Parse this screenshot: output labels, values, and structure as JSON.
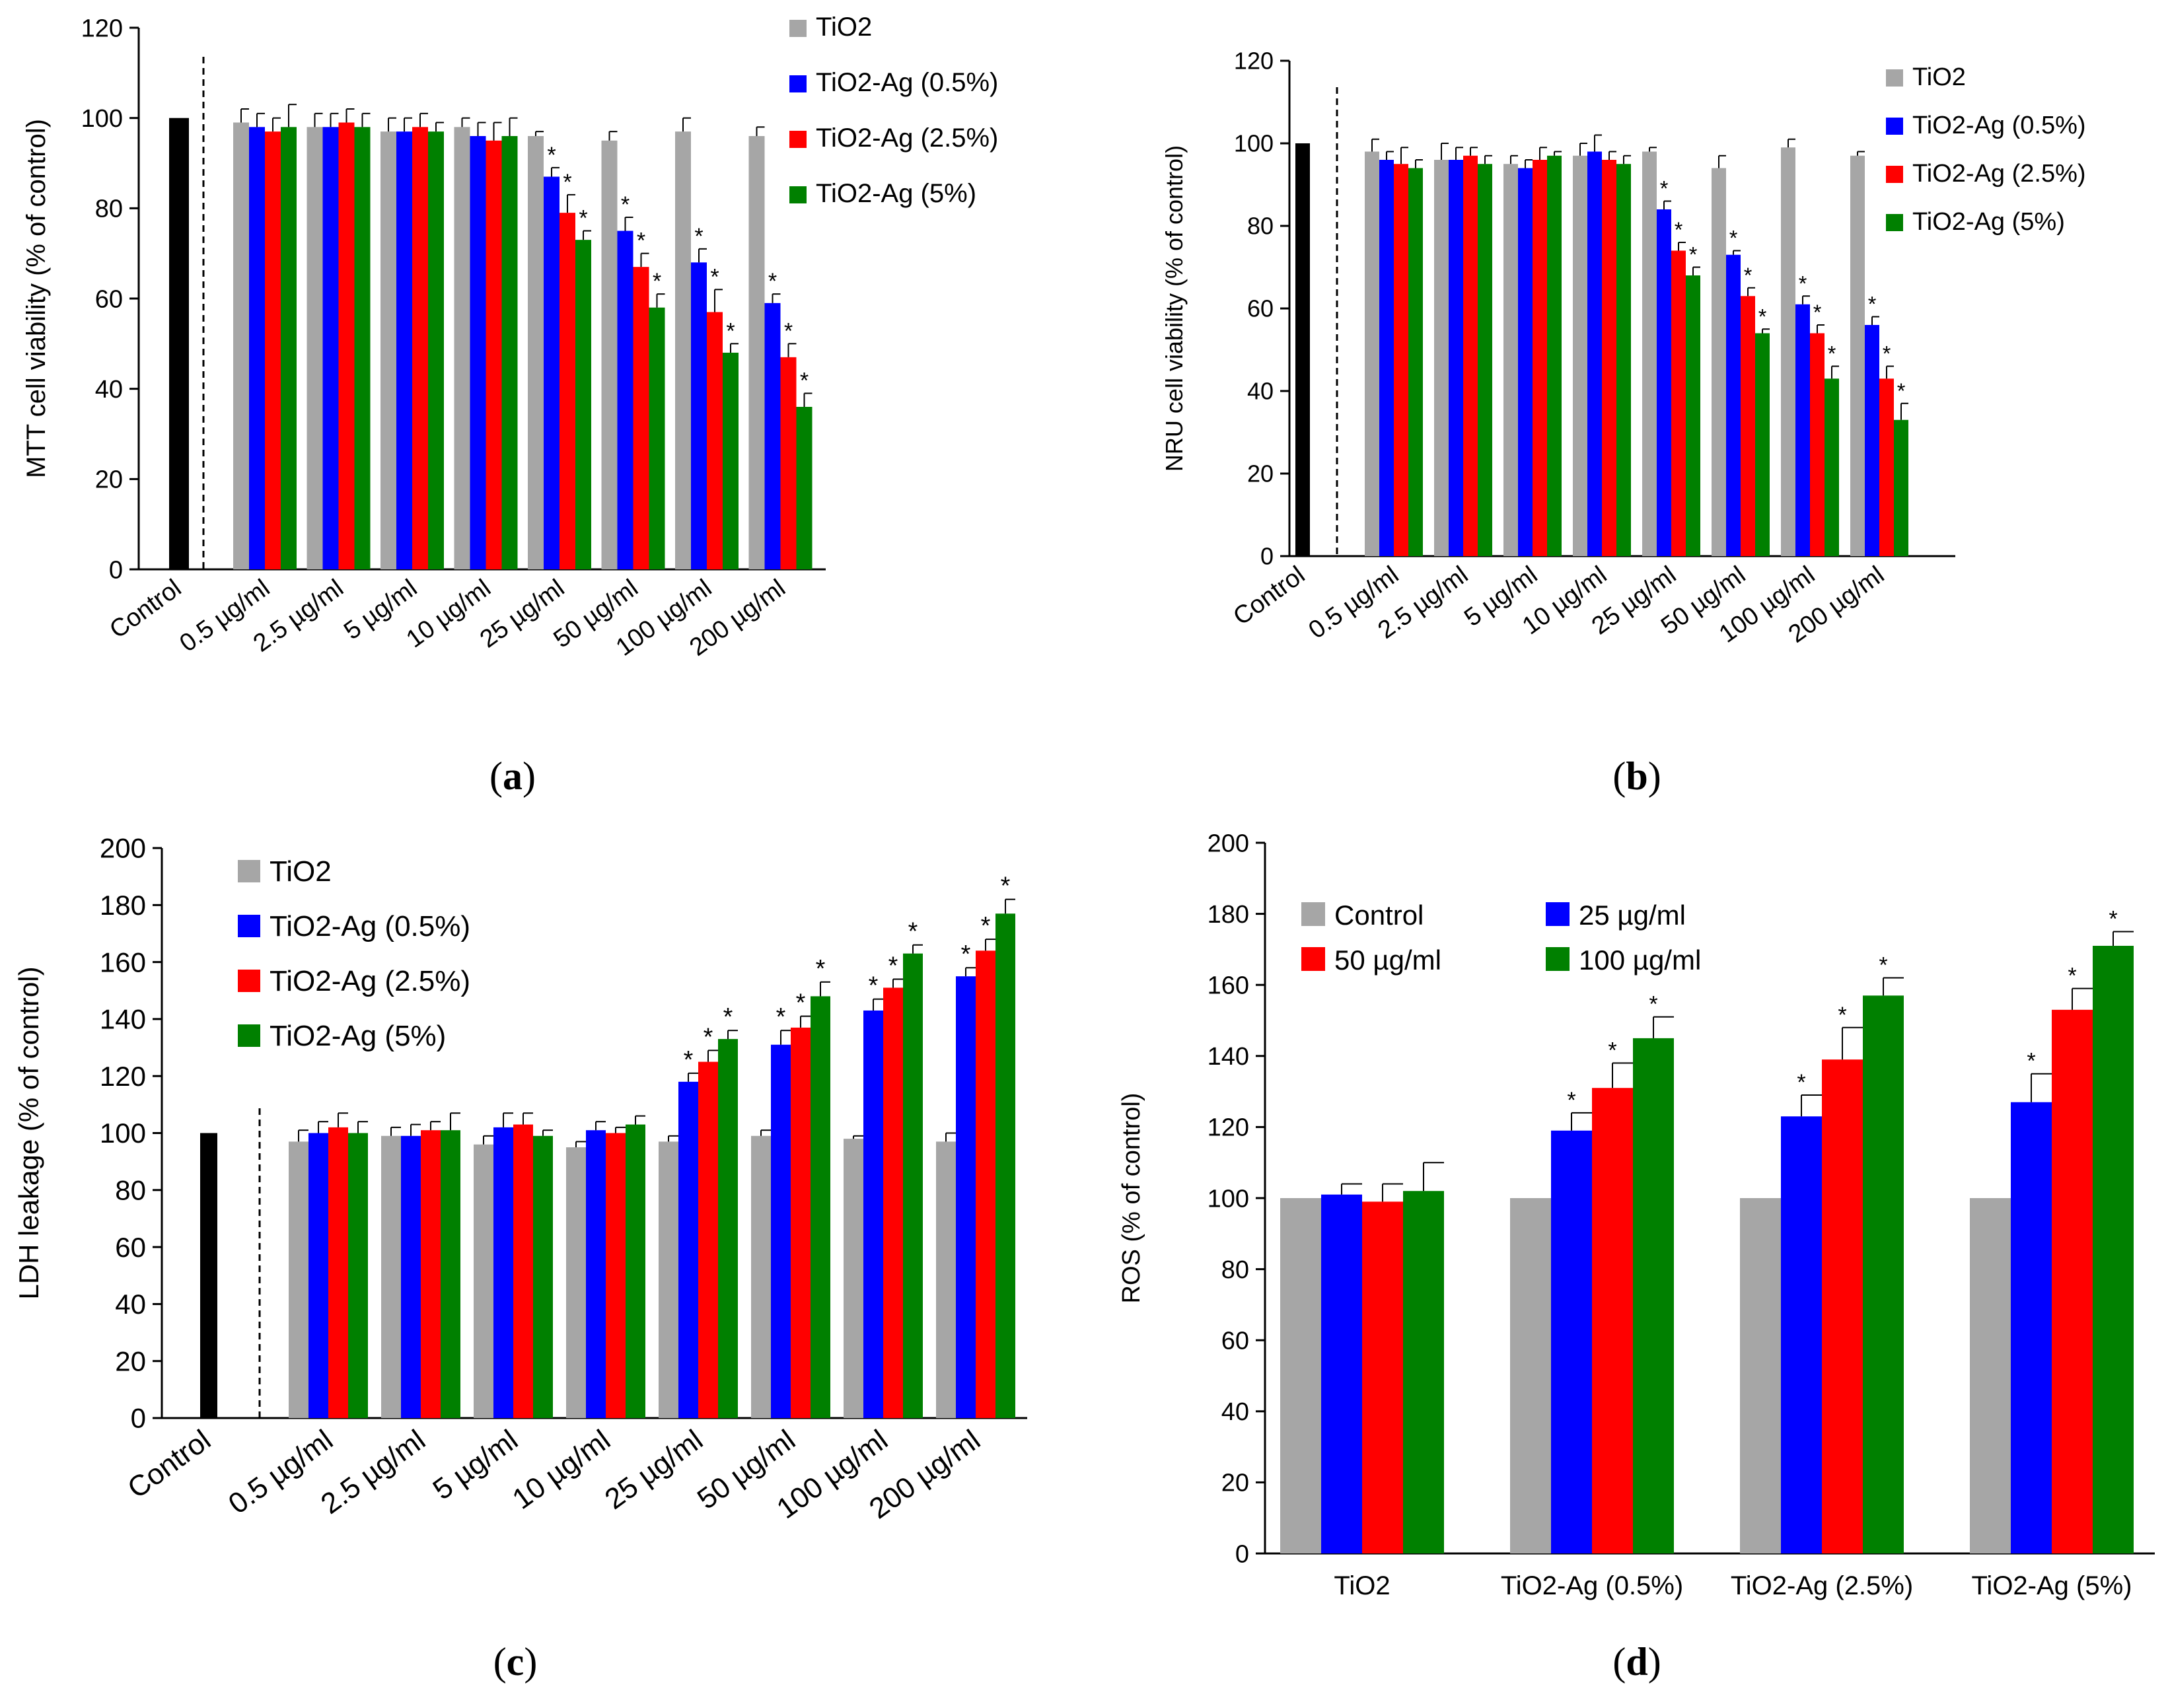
{
  "colors": {
    "tio2": "#a6a6a6",
    "ag05": "#0000ff",
    "ag25": "#ff0000",
    "ag5": "#008000",
    "control": "#000000",
    "axis": "#000000"
  },
  "chart_data": [
    {
      "id": "a",
      "panel_label": "a",
      "type": "bar",
      "ylabel": "MTT cell viability (% of control)",
      "xlabel": "",
      "ylim": [
        0,
        120
      ],
      "ytick_step": 20,
      "control": {
        "label": "Control",
        "value": 100
      },
      "categories": [
        "0.5 µg/ml",
        "2.5 µg/ml",
        "5 µg/ml",
        "10 µg/ml",
        "25 µg/ml",
        "50 µg/ml",
        "100 µg/ml",
        "200 µg/ml"
      ],
      "series": [
        {
          "name": "TiO2",
          "color_key": "tio2",
          "values": [
            99,
            98,
            97,
            98,
            96,
            95,
            97,
            96
          ],
          "errors": [
            3,
            3,
            3,
            2,
            1,
            2,
            3,
            2
          ],
          "stars": [
            false,
            false,
            false,
            false,
            false,
            false,
            false,
            false
          ]
        },
        {
          "name": "TiO2-Ag (0.5%)",
          "color_key": "ag05",
          "values": [
            98,
            98,
            97,
            96,
            87,
            75,
            68,
            59
          ],
          "errors": [
            3,
            3,
            3,
            3,
            2,
            3,
            3,
            2
          ],
          "stars": [
            false,
            false,
            false,
            false,
            true,
            true,
            true,
            true
          ]
        },
        {
          "name": "TiO2-Ag (2.5%)",
          "color_key": "ag25",
          "values": [
            97,
            99,
            98,
            95,
            79,
            67,
            57,
            47
          ],
          "errors": [
            3,
            3,
            3,
            4,
            4,
            3,
            5,
            3
          ],
          "stars": [
            false,
            false,
            false,
            false,
            true,
            true,
            true,
            true
          ]
        },
        {
          "name": "TiO2-Ag (5%)",
          "color_key": "ag5",
          "values": [
            98,
            98,
            97,
            96,
            73,
            58,
            48,
            36
          ],
          "errors": [
            5,
            3,
            2,
            4,
            2,
            3,
            2,
            3
          ],
          "stars": [
            false,
            false,
            false,
            false,
            true,
            true,
            true,
            true
          ]
        }
      ],
      "legend": [
        "TiO2",
        "TiO2-Ag (0.5%)",
        "TiO2-Ag (2.5%)",
        "TiO2-Ag (5%)"
      ],
      "legend_placement": "top-right"
    },
    {
      "id": "b",
      "panel_label": "b",
      "type": "bar",
      "ylabel": "NRU cell viability (% of control)",
      "xlabel": "",
      "ylim": [
        0,
        120
      ],
      "ytick_step": 20,
      "control": {
        "label": "Control",
        "value": 100
      },
      "categories": [
        "0.5 µg/ml",
        "2.5 µg/ml",
        "5 µg/ml",
        "10 µg/ml",
        "25 µg/ml",
        "50 µg/ml",
        "100 µg/ml",
        "200 µg/ml"
      ],
      "series": [
        {
          "name": "TiO2",
          "color_key": "tio2",
          "values": [
            98,
            96,
            95,
            97,
            98,
            94,
            99,
            97
          ],
          "errors": [
            3,
            4,
            2,
            3,
            1,
            3,
            2,
            1
          ],
          "stars": [
            false,
            false,
            false,
            false,
            false,
            false,
            false,
            false
          ]
        },
        {
          "name": "TiO2-Ag (0.5%)",
          "color_key": "ag05",
          "values": [
            96,
            96,
            94,
            98,
            84,
            73,
            61,
            56
          ],
          "errors": [
            2,
            3,
            2,
            4,
            2,
            1,
            2,
            2
          ],
          "stars": [
            false,
            false,
            false,
            false,
            true,
            true,
            true,
            true
          ]
        },
        {
          "name": "TiO2-Ag (2.5%)",
          "color_key": "ag25",
          "values": [
            95,
            97,
            96,
            96,
            74,
            63,
            54,
            43
          ],
          "errors": [
            4,
            2,
            3,
            2,
            2,
            2,
            2,
            3
          ],
          "stars": [
            false,
            false,
            false,
            false,
            true,
            true,
            true,
            true
          ]
        },
        {
          "name": "TiO2-Ag (5%)",
          "color_key": "ag5",
          "values": [
            94,
            95,
            97,
            95,
            68,
            54,
            43,
            33
          ],
          "errors": [
            2,
            2,
            1,
            2,
            2,
            1,
            3,
            4
          ],
          "stars": [
            false,
            false,
            false,
            false,
            true,
            true,
            true,
            true
          ]
        }
      ],
      "legend": [
        "TiO2",
        "TiO2-Ag (0.5%)",
        "TiO2-Ag (2.5%)",
        "TiO2-Ag (5%)"
      ],
      "legend_placement": "top-right"
    },
    {
      "id": "c",
      "panel_label": "c",
      "type": "bar",
      "ylabel": "LDH leakage (% of control)",
      "xlabel": "",
      "ylim": [
        0,
        200
      ],
      "ytick_step": 20,
      "control": {
        "label": "Control",
        "value": 100
      },
      "categories": [
        "0.5 µg/ml",
        "2.5 µg/ml",
        "5 µg/ml",
        "10 µg/ml",
        "25 µg/ml",
        "50 µg/ml",
        "100 µg/ml",
        "200 µg/ml"
      ],
      "series": [
        {
          "name": "TiO2",
          "color_key": "tio2",
          "values": [
            97,
            99,
            96,
            95,
            97,
            99,
            98,
            97
          ],
          "errors": [
            4,
            3,
            3,
            2,
            2,
            2,
            1,
            3
          ],
          "stars": [
            false,
            false,
            false,
            false,
            false,
            false,
            false,
            false
          ]
        },
        {
          "name": "TiO2-Ag (0.5%)",
          "color_key": "ag05",
          "values": [
            100,
            99,
            102,
            101,
            118,
            131,
            143,
            155
          ],
          "errors": [
            4,
            4,
            5,
            3,
            3,
            5,
            4,
            3
          ],
          "stars": [
            false,
            false,
            false,
            false,
            true,
            true,
            true,
            true
          ]
        },
        {
          "name": "TiO2-Ag (2.5%)",
          "color_key": "ag25",
          "values": [
            102,
            101,
            103,
            100,
            125,
            137,
            151,
            164
          ],
          "errors": [
            5,
            3,
            4,
            2,
            4,
            4,
            3,
            4
          ],
          "stars": [
            false,
            false,
            false,
            false,
            true,
            true,
            true,
            true
          ]
        },
        {
          "name": "TiO2-Ag (5%)",
          "color_key": "ag5",
          "values": [
            100,
            101,
            99,
            103,
            133,
            148,
            163,
            177
          ],
          "errors": [
            4,
            6,
            2,
            3,
            3,
            5,
            3,
            5
          ],
          "stars": [
            false,
            false,
            false,
            false,
            true,
            true,
            true,
            true
          ]
        }
      ],
      "legend": [
        "TiO2",
        "TiO2-Ag (0.5%)",
        "TiO2-Ag (2.5%)",
        "TiO2-Ag (5%)"
      ],
      "legend_placement": "top-left"
    },
    {
      "id": "d",
      "panel_label": "d",
      "type": "bar",
      "ylabel": "ROS (% of control)",
      "xlabel": "",
      "ylim": [
        0,
        200
      ],
      "ytick_step": 20,
      "categories": [
        "TiO2",
        "TiO2-Ag (0.5%)",
        "TiO2-Ag (2.5%)",
        "TiO2-Ag (5%)"
      ],
      "series": [
        {
          "name": "Control",
          "color_key": "tio2",
          "values": [
            100,
            100,
            100,
            100
          ],
          "errors": [
            0,
            0,
            0,
            0
          ],
          "stars": [
            false,
            false,
            false,
            false
          ]
        },
        {
          "name": "25 µg/ml",
          "color_key": "ag05",
          "values": [
            101,
            119,
            123,
            127
          ],
          "errors": [
            3,
            5,
            6,
            8
          ],
          "stars": [
            false,
            true,
            true,
            true
          ]
        },
        {
          "name": "50 µg/ml",
          "color_key": "ag25",
          "values": [
            99,
            131,
            139,
            153
          ],
          "errors": [
            5,
            7,
            9,
            6
          ],
          "stars": [
            false,
            true,
            true,
            true
          ]
        },
        {
          "name": "100 µg/ml",
          "color_key": "ag5",
          "values": [
            102,
            145,
            157,
            171
          ],
          "errors": [
            8,
            6,
            5,
            4
          ],
          "stars": [
            false,
            true,
            true,
            true
          ]
        }
      ],
      "legend": [
        "Control",
        "25 µg/ml",
        "50 µg/ml",
        "100 µg/ml"
      ],
      "legend_placement": "top-left"
    }
  ],
  "star_symbol": "*"
}
